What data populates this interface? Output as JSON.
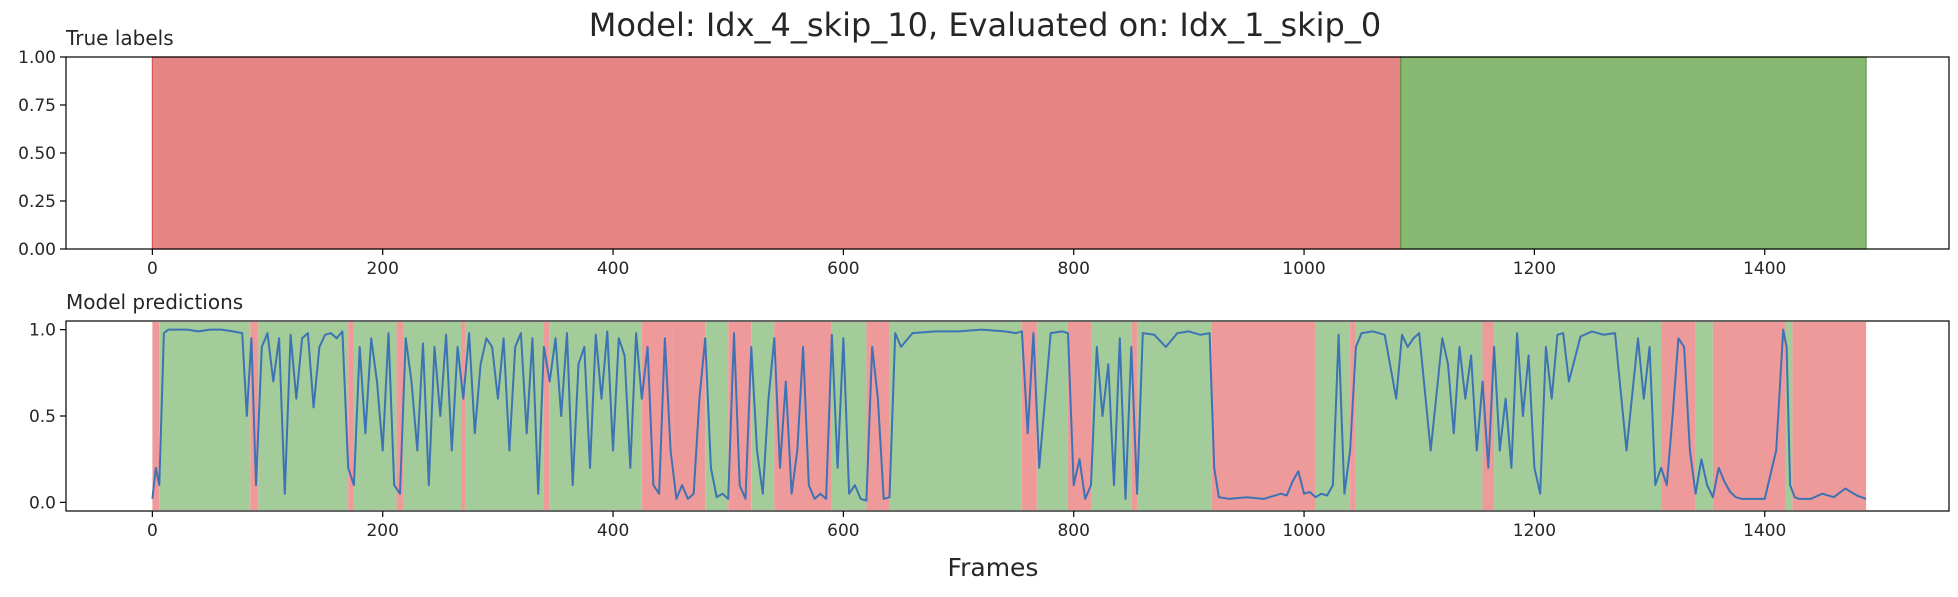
{
  "chart_data": [
    {
      "type": "area",
      "panel_title": "True labels",
      "title": "Model: Idx_4_skip_10, Evaluated on: Idx_1_skip_0",
      "xlim": [
        -75,
        1560
      ],
      "ylim": [
        0,
        1
      ],
      "xticks": [
        "0",
        "200",
        "400",
        "600",
        "800",
        "1000",
        "1200",
        "1400"
      ],
      "yticks": [
        "0.00",
        "0.25",
        "0.50",
        "0.75",
        "1.00"
      ],
      "segments": [
        {
          "start": 0,
          "end": 1084,
          "label": 0
        },
        {
          "start": 1084,
          "end": 1488,
          "label": 1
        }
      ],
      "colors": {
        "label_0": "#e06666",
        "label_1": "#6aa84f",
        "edge_0": "#d45555",
        "edge_1": "#5a9a45"
      }
    },
    {
      "type": "line",
      "panel_title": "Model predictions",
      "xlabel": "Frames",
      "xlim": [
        -75,
        1560
      ],
      "ylim": [
        -0.05,
        1.05
      ],
      "xticks": [
        "0",
        "200",
        "400",
        "600",
        "800",
        "1000",
        "1200",
        "1400"
      ],
      "yticks": [
        "0.0",
        "0.5",
        "1.0"
      ],
      "series_color": "#3d73b5",
      "band_colors": {
        "label_0": "#ef9a9a",
        "label_1": "#a4cc9a"
      },
      "bands": [
        {
          "start": 0,
          "end": 6,
          "label": 0
        },
        {
          "start": 6,
          "end": 85,
          "label": 1
        },
        {
          "start": 85,
          "end": 92,
          "label": 0
        },
        {
          "start": 92,
          "end": 170,
          "label": 1
        },
        {
          "start": 170,
          "end": 175,
          "label": 0
        },
        {
          "start": 175,
          "end": 212,
          "label": 1
        },
        {
          "start": 212,
          "end": 218,
          "label": 0
        },
        {
          "start": 218,
          "end": 268,
          "label": 1
        },
        {
          "start": 268,
          "end": 272,
          "label": 0
        },
        {
          "start": 272,
          "end": 340,
          "label": 1
        },
        {
          "start": 340,
          "end": 345,
          "label": 0
        },
        {
          "start": 345,
          "end": 425,
          "label": 1
        },
        {
          "start": 425,
          "end": 452,
          "label": 0
        },
        {
          "start": 452,
          "end": 480,
          "label": 0
        },
        {
          "start": 480,
          "end": 500,
          "label": 1
        },
        {
          "start": 500,
          "end": 520,
          "label": 0
        },
        {
          "start": 520,
          "end": 540,
          "label": 1
        },
        {
          "start": 540,
          "end": 590,
          "label": 0
        },
        {
          "start": 590,
          "end": 620,
          "label": 1
        },
        {
          "start": 620,
          "end": 640,
          "label": 0
        },
        {
          "start": 640,
          "end": 755,
          "label": 1
        },
        {
          "start": 755,
          "end": 768,
          "label": 0
        },
        {
          "start": 768,
          "end": 795,
          "label": 1
        },
        {
          "start": 795,
          "end": 815,
          "label": 0
        },
        {
          "start": 815,
          "end": 850,
          "label": 1
        },
        {
          "start": 850,
          "end": 855,
          "label": 0
        },
        {
          "start": 855,
          "end": 920,
          "label": 1
        },
        {
          "start": 920,
          "end": 1010,
          "label": 0
        },
        {
          "start": 1010,
          "end": 1040,
          "label": 1
        },
        {
          "start": 1040,
          "end": 1045,
          "label": 0
        },
        {
          "start": 1045,
          "end": 1155,
          "label": 1
        },
        {
          "start": 1155,
          "end": 1165,
          "label": 0
        },
        {
          "start": 1165,
          "end": 1310,
          "label": 1
        },
        {
          "start": 1310,
          "end": 1340,
          "label": 0
        },
        {
          "start": 1340,
          "end": 1355,
          "label": 1
        },
        {
          "start": 1355,
          "end": 1418,
          "label": 0
        },
        {
          "start": 1418,
          "end": 1424,
          "label": 1
        },
        {
          "start": 1424,
          "end": 1488,
          "label": 0
        }
      ],
      "series": [
        {
          "x": [
            0,
            3,
            6,
            10,
            14,
            20,
            30,
            40,
            50,
            60,
            70,
            78,
            82,
            86,
            90,
            95,
            100,
            105,
            110,
            115,
            120,
            125,
            130,
            135,
            140,
            145,
            150,
            155,
            160,
            165,
            170,
            175,
            180,
            185,
            190,
            195,
            200,
            205,
            210,
            215,
            220,
            225,
            230,
            235,
            240,
            245,
            250,
            255,
            260,
            265,
            270,
            275,
            280,
            285,
            290,
            295,
            300,
            305,
            310,
            315,
            320,
            325,
            330,
            335,
            340,
            345,
            350,
            355,
            360,
            365,
            370,
            375,
            380,
            385,
            390,
            395,
            400,
            405,
            410,
            415,
            420,
            425,
            430,
            435,
            440,
            445,
            450,
            455,
            460,
            465,
            470,
            475,
            480,
            485,
            490,
            495,
            500,
            505,
            510,
            515,
            520,
            525,
            530,
            535,
            540,
            545,
            550,
            555,
            560,
            565,
            570,
            575,
            580,
            585,
            590,
            595,
            600,
            605,
            610,
            615,
            620,
            625,
            630,
            635,
            640,
            645,
            650,
            660,
            680,
            700,
            720,
            740,
            750,
            755,
            760,
            765,
            770,
            780,
            790,
            795,
            800,
            805,
            810,
            815,
            820,
            825,
            830,
            835,
            840,
            845,
            850,
            855,
            860,
            870,
            880,
            890,
            900,
            910,
            918,
            922,
            926,
            935,
            950,
            965,
            980,
            985,
            990,
            995,
            1000,
            1005,
            1010,
            1015,
            1020,
            1025,
            1030,
            1035,
            1040,
            1045,
            1050,
            1060,
            1070,
            1080,
            1085,
            1090,
            1095,
            1100,
            1110,
            1120,
            1125,
            1130,
            1135,
            1140,
            1145,
            1150,
            1155,
            1160,
            1165,
            1170,
            1175,
            1180,
            1185,
            1190,
            1195,
            1200,
            1205,
            1210,
            1215,
            1220,
            1225,
            1230,
            1240,
            1250,
            1260,
            1270,
            1280,
            1290,
            1295,
            1300,
            1305,
            1310,
            1315,
            1320,
            1325,
            1330,
            1335,
            1340,
            1345,
            1350,
            1355,
            1360,
            1365,
            1370,
            1375,
            1380,
            1385,
            1390,
            1400,
            1410,
            1416,
            1419,
            1422,
            1426,
            1430,
            1440,
            1450,
            1460,
            1470,
            1480,
            1488
          ],
          "y": [
            0.02,
            0.2,
            0.1,
            0.98,
            1.0,
            1.0,
            1.0,
            0.99,
            1.0,
            1.0,
            0.99,
            0.98,
            0.5,
            0.95,
            0.1,
            0.9,
            0.98,
            0.7,
            0.95,
            0.05,
            0.97,
            0.6,
            0.95,
            0.98,
            0.55,
            0.9,
            0.97,
            0.98,
            0.95,
            0.99,
            0.2,
            0.1,
            0.9,
            0.4,
            0.95,
            0.7,
            0.3,
            0.98,
            0.1,
            0.05,
            0.95,
            0.7,
            0.3,
            0.92,
            0.1,
            0.9,
            0.5,
            0.97,
            0.3,
            0.9,
            0.6,
            0.98,
            0.4,
            0.8,
            0.95,
            0.9,
            0.6,
            0.95,
            0.3,
            0.9,
            0.98,
            0.4,
            0.95,
            0.05,
            0.9,
            0.7,
            0.95,
            0.5,
            0.98,
            0.1,
            0.8,
            0.9,
            0.2,
            0.97,
            0.6,
            0.99,
            0.3,
            0.95,
            0.85,
            0.2,
            0.98,
            0.6,
            0.9,
            0.1,
            0.05,
            0.95,
            0.3,
            0.02,
            0.1,
            0.02,
            0.05,
            0.6,
            0.95,
            0.2,
            0.03,
            0.05,
            0.02,
            0.98,
            0.1,
            0.02,
            0.9,
            0.3,
            0.05,
            0.6,
            0.95,
            0.2,
            0.7,
            0.05,
            0.3,
            0.9,
            0.1,
            0.02,
            0.05,
            0.02,
            0.97,
            0.2,
            0.95,
            0.05,
            0.1,
            0.02,
            0.01,
            0.9,
            0.6,
            0.02,
            0.03,
            0.98,
            0.9,
            0.98,
            0.99,
            0.99,
            1.0,
            0.99,
            0.98,
            0.99,
            0.4,
            0.98,
            0.2,
            0.98,
            0.99,
            0.98,
            0.1,
            0.25,
            0.02,
            0.1,
            0.9,
            0.5,
            0.8,
            0.1,
            0.95,
            0.02,
            0.9,
            0.05,
            0.98,
            0.97,
            0.9,
            0.98,
            0.99,
            0.97,
            0.98,
            0.2,
            0.03,
            0.02,
            0.03,
            0.02,
            0.05,
            0.04,
            0.12,
            0.18,
            0.05,
            0.06,
            0.03,
            0.05,
            0.04,
            0.1,
            0.97,
            0.05,
            0.3,
            0.9,
            0.98,
            0.99,
            0.97,
            0.6,
            0.97,
            0.9,
            0.95,
            0.98,
            0.3,
            0.95,
            0.8,
            0.4,
            0.9,
            0.6,
            0.85,
            0.3,
            0.7,
            0.2,
            0.9,
            0.3,
            0.6,
            0.2,
            0.98,
            0.5,
            0.85,
            0.2,
            0.05,
            0.9,
            0.6,
            0.97,
            0.98,
            0.7,
            0.96,
            0.99,
            0.97,
            0.98,
            0.3,
            0.95,
            0.6,
            0.9,
            0.1,
            0.2,
            0.1,
            0.5,
            0.95,
            0.9,
            0.3,
            0.05,
            0.25,
            0.1,
            0.03,
            0.2,
            0.12,
            0.06,
            0.03,
            0.02,
            0.02,
            0.02,
            0.02,
            0.3,
            1.0,
            0.9,
            0.1,
            0.03,
            0.02,
            0.02,
            0.05,
            0.03,
            0.08,
            0.04,
            0.02
          ]
        }
      ]
    }
  ]
}
